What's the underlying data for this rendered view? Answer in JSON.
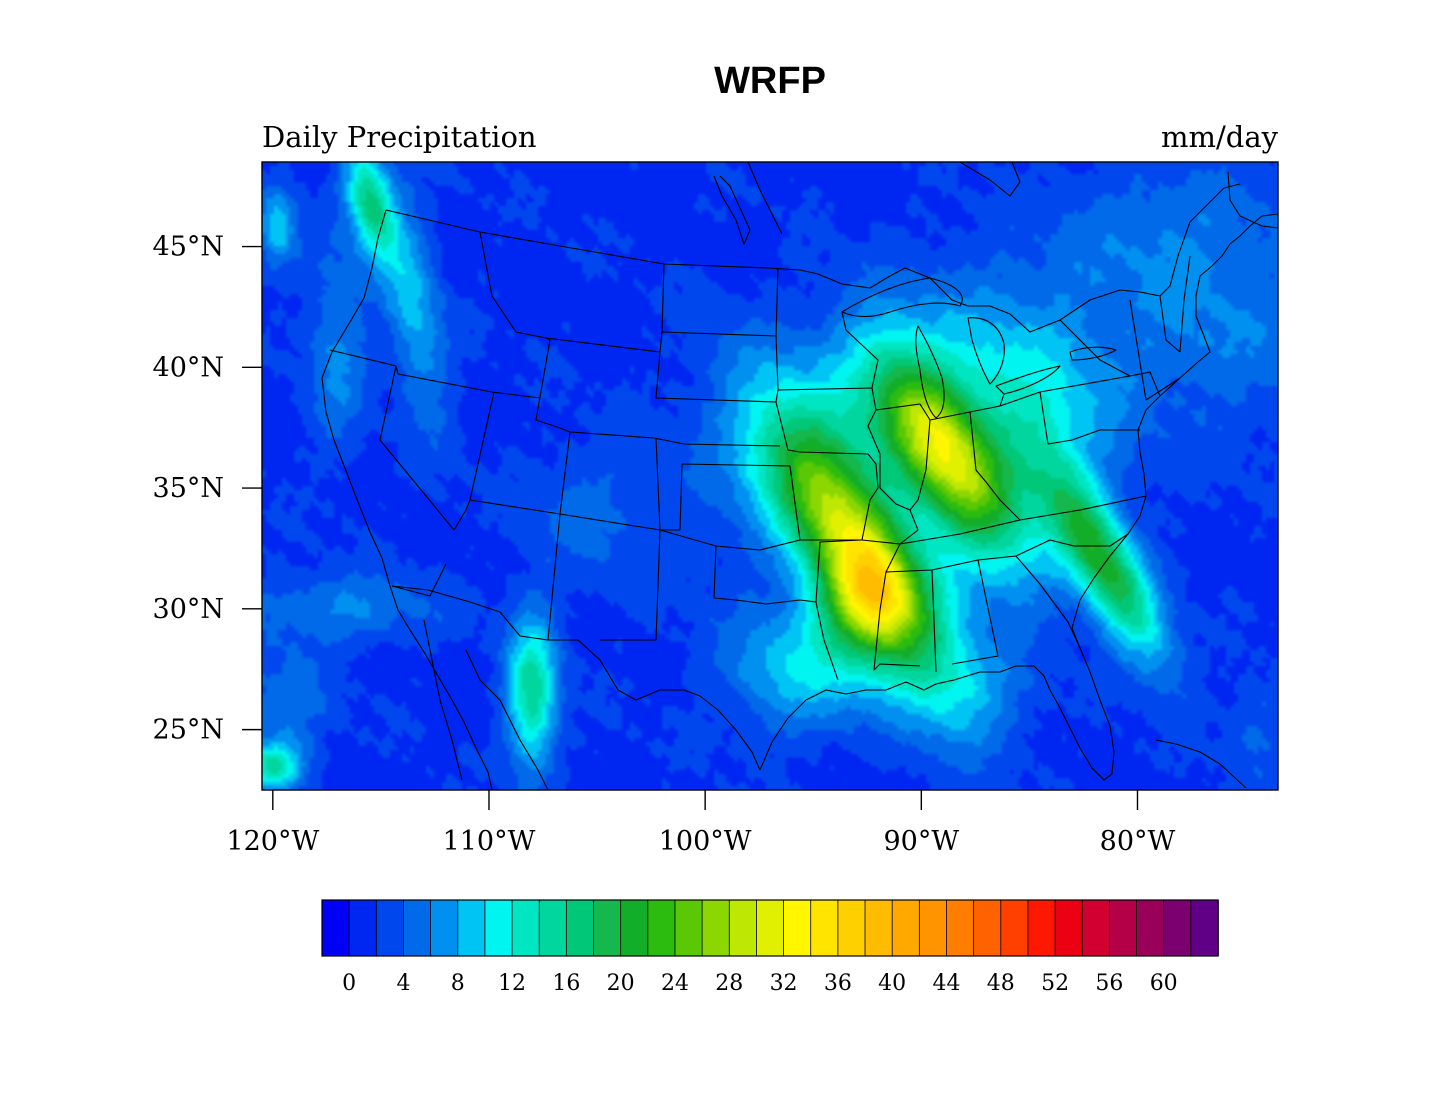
{
  "figure": {
    "title": "WRFP",
    "left_string": "Daily Precipitation",
    "right_string": "mm/day"
  },
  "map": {
    "projection": "lat-lon",
    "lon_range": [
      -120.5,
      -73.5
    ],
    "lat_range": [
      22.5,
      48.5
    ],
    "lon_ticks": [
      {
        "value": -120,
        "label": "120°W"
      },
      {
        "value": -110,
        "label": "110°W"
      },
      {
        "value": -100,
        "label": "100°W"
      },
      {
        "value": -90,
        "label": "90°W"
      },
      {
        "value": -80,
        "label": "80°W"
      }
    ],
    "lat_ticks": [
      {
        "value": 45,
        "label": "45°N"
      },
      {
        "value": 40,
        "label": "40°N"
      },
      {
        "value": 35,
        "label": "35°N"
      },
      {
        "value": 30,
        "label": "30°N"
      },
      {
        "value": 25,
        "label": "25°N"
      }
    ],
    "background_level_mm": 1.5,
    "precip_features": [
      {
        "lon": -93.0,
        "lat": 32.5,
        "value": 26,
        "sx": 1.6,
        "sy": 4.5,
        "rot": -35
      },
      {
        "lon": -89.0,
        "lat": 36.5,
        "value": 22,
        "sx": 1.4,
        "sy": 3.2,
        "rot": -35
      },
      {
        "lon": -92.5,
        "lat": 30.2,
        "value": 14,
        "sx": 1.6,
        "sy": 1.6,
        "rot": 0
      },
      {
        "lon": -81.5,
        "lat": 31.8,
        "value": 18,
        "sx": 1.0,
        "sy": 3.2,
        "rot": -32
      },
      {
        "lon": -95.5,
        "lat": 27.5,
        "value": 8,
        "sx": 2.5,
        "sy": 1.8,
        "rot": 0
      },
      {
        "lon": -91.0,
        "lat": 38.5,
        "value": 8,
        "sx": 6.0,
        "sy": 3.0,
        "rot": -25
      },
      {
        "lon": -86.0,
        "lat": 34.0,
        "value": 6,
        "sx": 3.0,
        "sy": 3.0,
        "rot": 0
      },
      {
        "lon": -115.5,
        "lat": 46.8,
        "value": 15,
        "sx": 0.7,
        "sy": 1.6,
        "rot": -15
      },
      {
        "lon": -113.5,
        "lat": 42.5,
        "value": 7,
        "sx": 0.9,
        "sy": 3.5,
        "rot": -10
      },
      {
        "lon": -117.0,
        "lat": 41.0,
        "value": 5,
        "sx": 1.0,
        "sy": 3.0,
        "rot": 0
      },
      {
        "lon": -108.0,
        "lat": 26.5,
        "value": 14,
        "sx": 0.8,
        "sy": 2.2,
        "rot": 0
      },
      {
        "lon": -119.8,
        "lat": 45.8,
        "value": 8,
        "sx": 0.6,
        "sy": 1.2,
        "rot": 0
      },
      {
        "lon": -117.0,
        "lat": 30.0,
        "value": 5,
        "sx": 3.0,
        "sy": 1.0,
        "rot": 0
      },
      {
        "lon": -120.0,
        "lat": 23.5,
        "value": 12,
        "sx": 1.0,
        "sy": 0.7,
        "rot": 0
      },
      {
        "lon": -119.5,
        "lat": 26.0,
        "value": 4,
        "sx": 1.5,
        "sy": 1.5,
        "rot": 0
      },
      {
        "lon": -84.5,
        "lat": 38.0,
        "value": 5,
        "sx": 2.5,
        "sy": 2.5,
        "rot": 0
      },
      {
        "lon": -76.0,
        "lat": 41.5,
        "value": 4,
        "sx": 4.0,
        "sy": 3.0,
        "rot": 0
      },
      {
        "lon": -78.5,
        "lat": 46.0,
        "value": 3,
        "sx": 3.5,
        "sy": 2.0,
        "rot": 0
      },
      {
        "lon": -105.5,
        "lat": 34.0,
        "value": 3,
        "sx": 2.0,
        "sy": 2.0,
        "rot": 0
      },
      {
        "lon": -88.0,
        "lat": 26.5,
        "value": 4,
        "sx": 2.0,
        "sy": 1.5,
        "rot": 0
      },
      {
        "lon": -74.5,
        "lat": 25.0,
        "value": 3,
        "sx": 1.0,
        "sy": 1.5,
        "rot": 0
      }
    ]
  },
  "colorbar": {
    "labels": [
      "0",
      "4",
      "8",
      "12",
      "16",
      "20",
      "24",
      "28",
      "32",
      "36",
      "40",
      "44",
      "48",
      "52",
      "56",
      "60"
    ],
    "label_values": [
      0,
      4,
      8,
      12,
      16,
      20,
      24,
      28,
      32,
      36,
      40,
      44,
      48,
      52,
      56,
      60
    ],
    "colors": [
      "#0000f7",
      "#0026f2",
      "#0048ee",
      "#006ae9",
      "#0090f0",
      "#00c4f4",
      "#00f4f0",
      "#00e6c2",
      "#00d69e",
      "#00c878",
      "#14b84c",
      "#12ad29",
      "#2cbc10",
      "#5ac805",
      "#8cd602",
      "#bee804",
      "#e0f000",
      "#fff600",
      "#ffe400",
      "#ffd000",
      "#ffbc00",
      "#ffa800",
      "#ff9400",
      "#ff7e00",
      "#ff6200",
      "#ff4000",
      "#ff1800",
      "#ec0014",
      "#d20030",
      "#b40046",
      "#98005a",
      "#7c0070",
      "#600086"
    ],
    "levels_note": ""
  }
}
